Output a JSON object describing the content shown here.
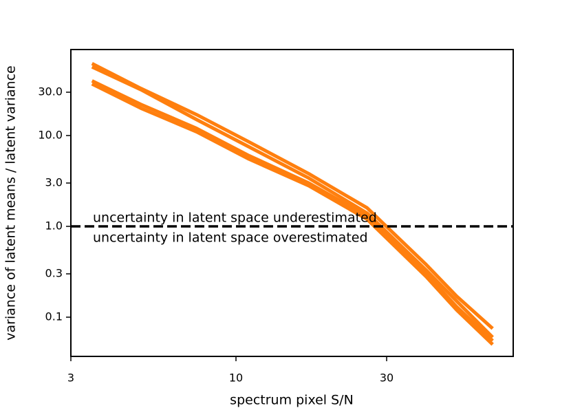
{
  "chart_data": {
    "type": "line",
    "xlabel": "spectrum pixel S/N",
    "ylabel": "variance of latent means / latent variance",
    "log_x": true,
    "log_y": true,
    "xlim": [
      3,
      75.5
    ],
    "ylim": [
      0.037,
      88.5
    ],
    "xticks": [
      3,
      10,
      30
    ],
    "yticks": [
      0.1,
      0.3,
      {
        "value": 1,
        "label": "1.0"
      },
      {
        "value": 3,
        "label": "3.0"
      },
      {
        "value": 10,
        "label": "10.0"
      },
      {
        "value": 30,
        "label": "30.0"
      }
    ],
    "x": [
      3.5,
      5,
      7.5,
      11,
      17,
      26,
      40,
      50,
      65
    ],
    "series": [
      {
        "color": "#ff7f0e",
        "values": [
          62,
          33,
          17,
          8.5,
          3.8,
          1.6,
          0.38,
          0.17,
          0.075
        ]
      },
      {
        "color": "#ff7f0e",
        "values": [
          57,
          32,
          15,
          7.5,
          3.4,
          1.4,
          0.33,
          0.15,
          0.06
        ]
      },
      {
        "color": "#ff7f0e",
        "values": [
          40,
          22,
          12,
          6.0,
          3.0,
          1.3,
          0.3,
          0.13,
          0.055
        ]
      },
      {
        "color": "#ff7f0e",
        "values": [
          37,
          20,
          11,
          5.5,
          2.8,
          1.2,
          0.28,
          0.12,
          0.05
        ]
      }
    ],
    "hline": 1,
    "annotations": [
      "uncertainty in latent space underestimated",
      "uncertainty in latent space overestimated"
    ]
  }
}
